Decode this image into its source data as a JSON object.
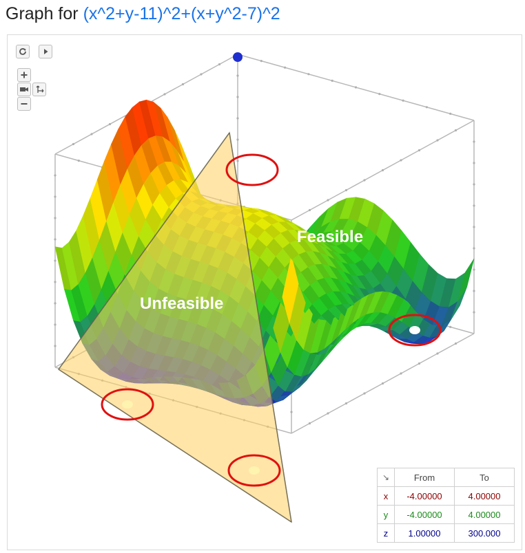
{
  "title": {
    "prefix": "Graph for",
    "formula": "(x^2+y-11)^2+(x+y^2-7)^2"
  },
  "controls": [
    {
      "name": "reset-view-icon"
    },
    {
      "name": "play-rotation-icon"
    },
    {
      "name": "zoom-in-icon"
    },
    {
      "name": "camera-mode-icon"
    },
    {
      "name": "axes-mode-icon"
    },
    {
      "name": "zoom-out-icon"
    }
  ],
  "chart_data": {
    "type": "surface3d",
    "function": "(x^2+y-11)^2+(x+y^2-7)^2",
    "annotations": [
      "Feasible",
      "Unfeasible"
    ],
    "highlighted_minima": [
      {
        "x": 3.0,
        "y": 2.0,
        "z": 0
      },
      {
        "x": -2.805,
        "y": 3.131,
        "z": 0
      },
      {
        "x": -3.779,
        "y": -3.283,
        "z": 0
      },
      {
        "x": 3.584,
        "y": -1.848,
        "z": 0
      }
    ],
    "colors": {
      "low": "#2020e8",
      "mid": "#22cc22",
      "high_mid": "#ffee00",
      "high": "#ff2200",
      "plane": "#ffd060"
    }
  },
  "range_table": {
    "corner": "↘",
    "headers": [
      "From",
      "To"
    ],
    "rows": [
      {
        "axis": "x",
        "from": "-4.00000",
        "to": "4.00000",
        "color": "#8b0000"
      },
      {
        "axis": "y",
        "from": "-4.00000",
        "to": "4.00000",
        "color": "#1a8a1a"
      },
      {
        "axis": "z",
        "from": "1.00000",
        "to": "300.000",
        "color": "#00008b"
      }
    ]
  }
}
